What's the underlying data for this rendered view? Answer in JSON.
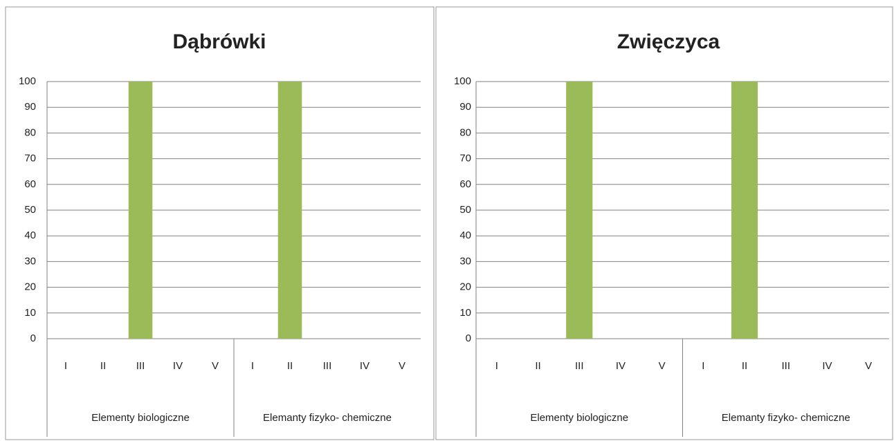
{
  "chart_data": [
    {
      "type": "bar",
      "title": "Dąbrówki",
      "categories": [
        "I",
        "II",
        "III",
        "IV",
        "V",
        "I",
        "II",
        "III",
        "IV",
        "V"
      ],
      "groups": [
        "Elementy biologiczne",
        "Elemanty fizyko- chemiczne"
      ],
      "values": [
        0,
        0,
        100,
        0,
        0,
        0,
        100,
        0,
        0,
        0
      ],
      "color": "#9bbb59",
      "ylim": [
        0,
        100
      ],
      "yticks": [
        0,
        10,
        20,
        30,
        40,
        50,
        60,
        70,
        80,
        90,
        100
      ],
      "grid": true
    },
    {
      "type": "bar",
      "title": "Zwięczyca",
      "categories": [
        "I",
        "II",
        "III",
        "IV",
        "V",
        "I",
        "II",
        "III",
        "IV",
        "V"
      ],
      "groups": [
        "Elementy biologiczne",
        "Elemanty fizyko- chemiczne"
      ],
      "values": [
        0,
        0,
        100,
        0,
        0,
        0,
        100,
        0,
        0,
        0
      ],
      "color": "#9bbb59",
      "ylim": [
        0,
        100
      ],
      "yticks": [
        0,
        10,
        20,
        30,
        40,
        50,
        60,
        70,
        80,
        90,
        100
      ],
      "grid": true
    }
  ]
}
